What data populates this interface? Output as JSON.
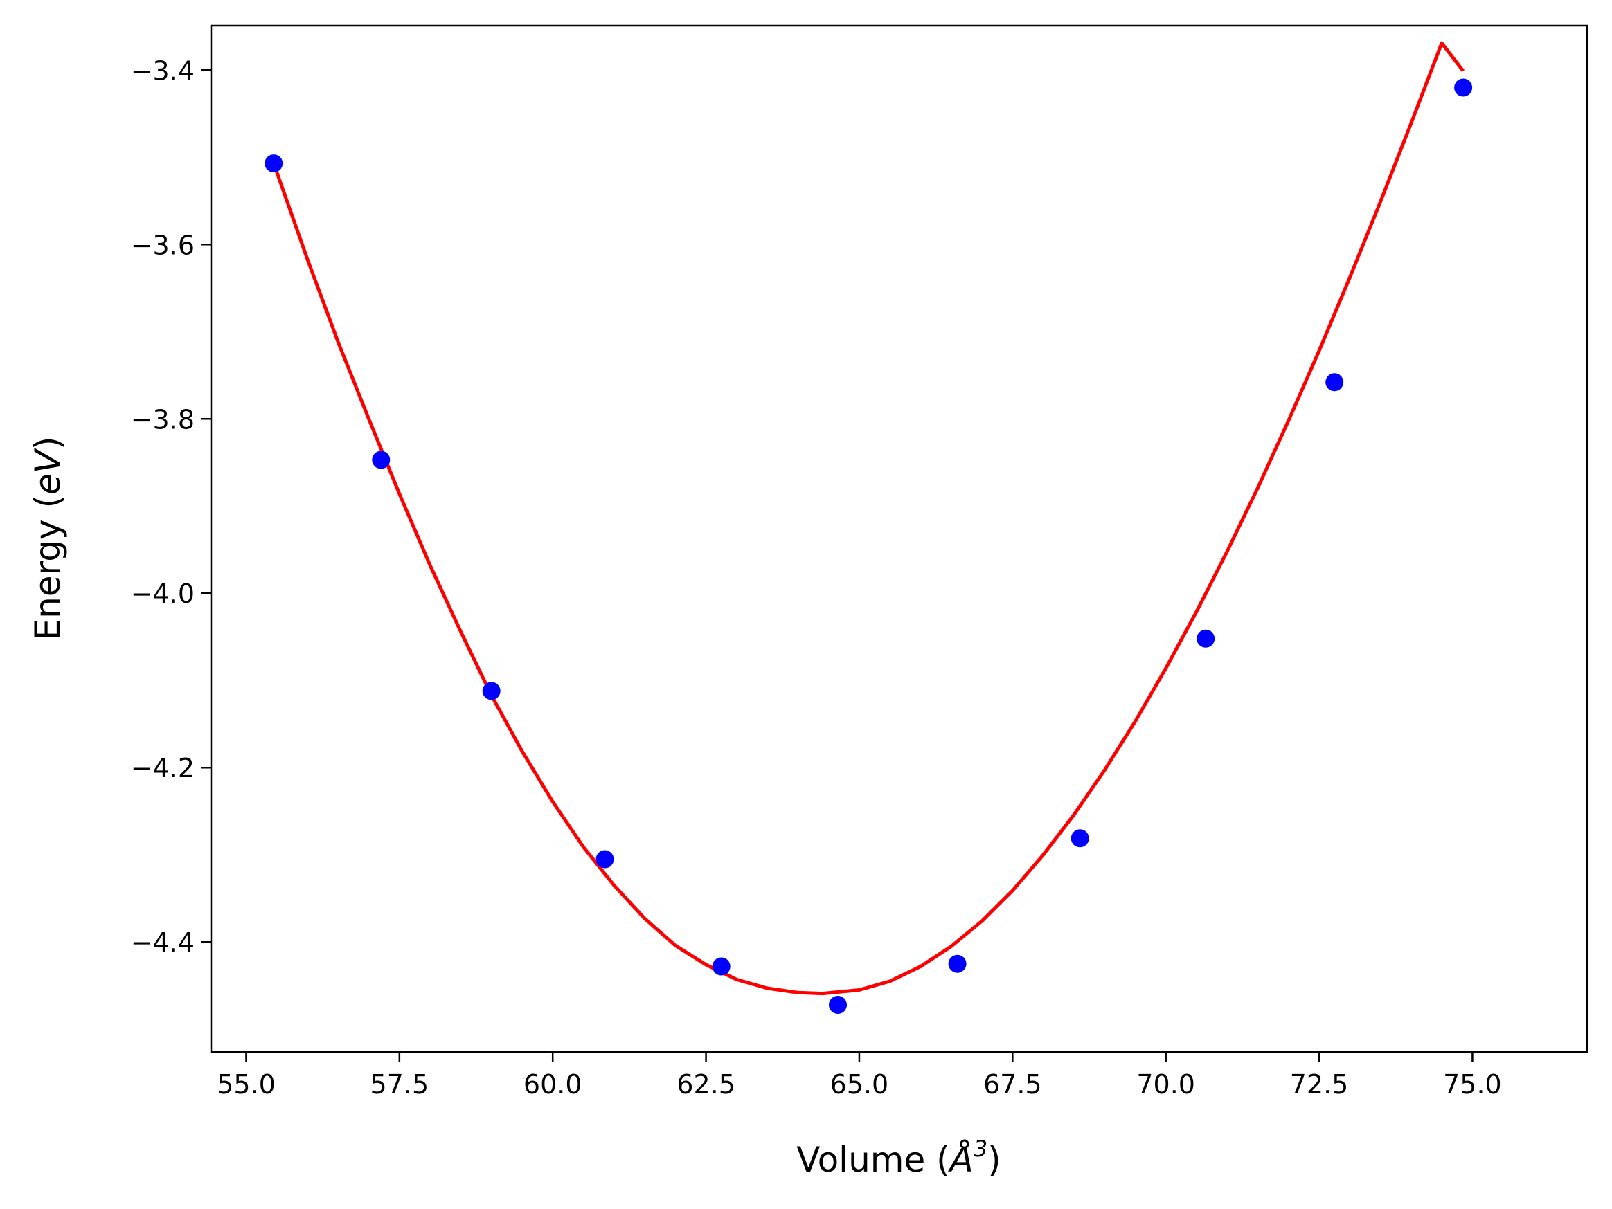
{
  "chart_data": {
    "type": "scatter",
    "title": "",
    "xlabel": {
      "prefix": "Volume (",
      "symbol": "Å",
      "exponent": "3",
      "suffix": ")"
    },
    "ylabel": {
      "prefix": "Energy (",
      "symbol": "eV",
      "suffix": ")"
    },
    "xlim": [
      54.43,
      76.87
    ],
    "ylim": [
      -4.526,
      -3.349
    ],
    "xticks": [
      {
        "value": 55.0,
        "label": "55.0"
      },
      {
        "value": 57.5,
        "label": "57.5"
      },
      {
        "value": 60.0,
        "label": "60.0"
      },
      {
        "value": 62.5,
        "label": "62.5"
      },
      {
        "value": 65.0,
        "label": "65.0"
      },
      {
        "value": 67.5,
        "label": "67.5"
      },
      {
        "value": 70.0,
        "label": "70.0"
      },
      {
        "value": 72.5,
        "label": "72.5"
      },
      {
        "value": 75.0,
        "label": "75.0"
      }
    ],
    "yticks": [
      {
        "value": -3.4,
        "label": "−3.4"
      },
      {
        "value": -3.6,
        "label": "−3.6"
      },
      {
        "value": -3.8,
        "label": "−3.8"
      },
      {
        "value": -4.0,
        "label": "−4.0"
      },
      {
        "value": -4.2,
        "label": "−4.2"
      },
      {
        "value": -4.4,
        "label": "−4.4"
      }
    ],
    "grid": false,
    "legend": "none",
    "series": [
      {
        "kind": "points",
        "color": "#0000ff",
        "x": [
          55.45,
          57.2,
          59.0,
          60.85,
          62.75,
          64.65,
          66.6,
          68.6,
          70.65,
          72.75,
          74.85
        ],
        "y": [
          -3.507,
          -3.847,
          -4.112,
          -4.305,
          -4.428,
          -4.472,
          -4.425,
          -4.281,
          -4.052,
          -3.758,
          -3.42
        ]
      },
      {
        "kind": "fit-curve",
        "color": "#ff0000",
        "x": [
          55.45,
          56.0,
          56.5,
          57.0,
          57.5,
          58.0,
          58.5,
          59.0,
          59.5,
          60.0,
          60.5,
          61.0,
          61.5,
          62.0,
          62.5,
          63.0,
          63.5,
          64.0,
          64.4,
          65.0,
          65.5,
          66.0,
          66.5,
          67.0,
          67.5,
          68.0,
          68.5,
          69.0,
          69.5,
          70.0,
          70.5,
          71.0,
          71.5,
          72.0,
          72.5,
          73.0,
          73.5,
          74.0,
          74.5,
          74.85
        ],
        "y": [
          -3.507,
          -3.617,
          -3.712,
          -3.8,
          -3.886,
          -3.968,
          -4.044,
          -4.117,
          -4.181,
          -4.239,
          -4.291,
          -4.335,
          -4.373,
          -4.404,
          -4.426,
          -4.443,
          -4.453,
          -4.458,
          -4.459,
          -4.455,
          -4.445,
          -4.428,
          -4.405,
          -4.376,
          -4.341,
          -4.3,
          -4.254,
          -4.203,
          -4.147,
          -4.086,
          -4.021,
          -3.952,
          -3.879,
          -3.802,
          -3.722,
          -3.638,
          -3.551,
          -3.461,
          -3.369,
          -3.401
        ]
      }
    ]
  }
}
